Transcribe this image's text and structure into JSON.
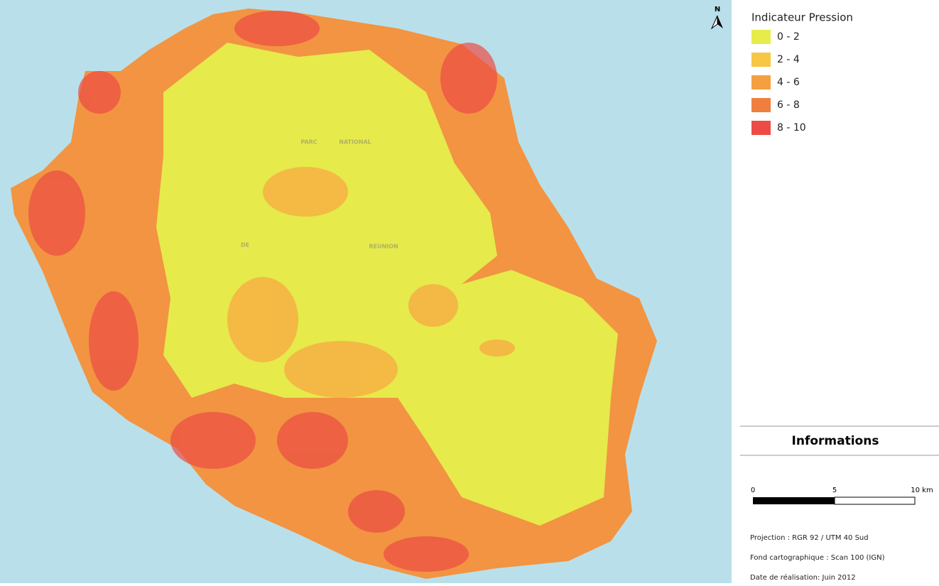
{
  "map": {
    "north_label": "N",
    "place_labels": [
      "PARC",
      "NATIONAL",
      "DE",
      "REUNION"
    ]
  },
  "legend": {
    "title": "Indicateur Pression",
    "items": [
      {
        "label": "0 - 2",
        "color": "#e8ec4a"
      },
      {
        "label": "2 - 4",
        "color": "#f7c645"
      },
      {
        "label": "4 - 6",
        "color": "#f4a041"
      },
      {
        "label": "6 - 8",
        "color": "#f07f3e"
      },
      {
        "label": "8 - 10",
        "color": "#ec4c44"
      }
    ]
  },
  "info": {
    "title": "Informations",
    "scale_labels": [
      "0",
      "5",
      "10 km"
    ],
    "lines": [
      "Projection : RGR 92 / UTM 40 Sud",
      "Fond cartographique : Scan 100 (IGN)",
      "Date de réalisation: Juin 2012"
    ]
  }
}
